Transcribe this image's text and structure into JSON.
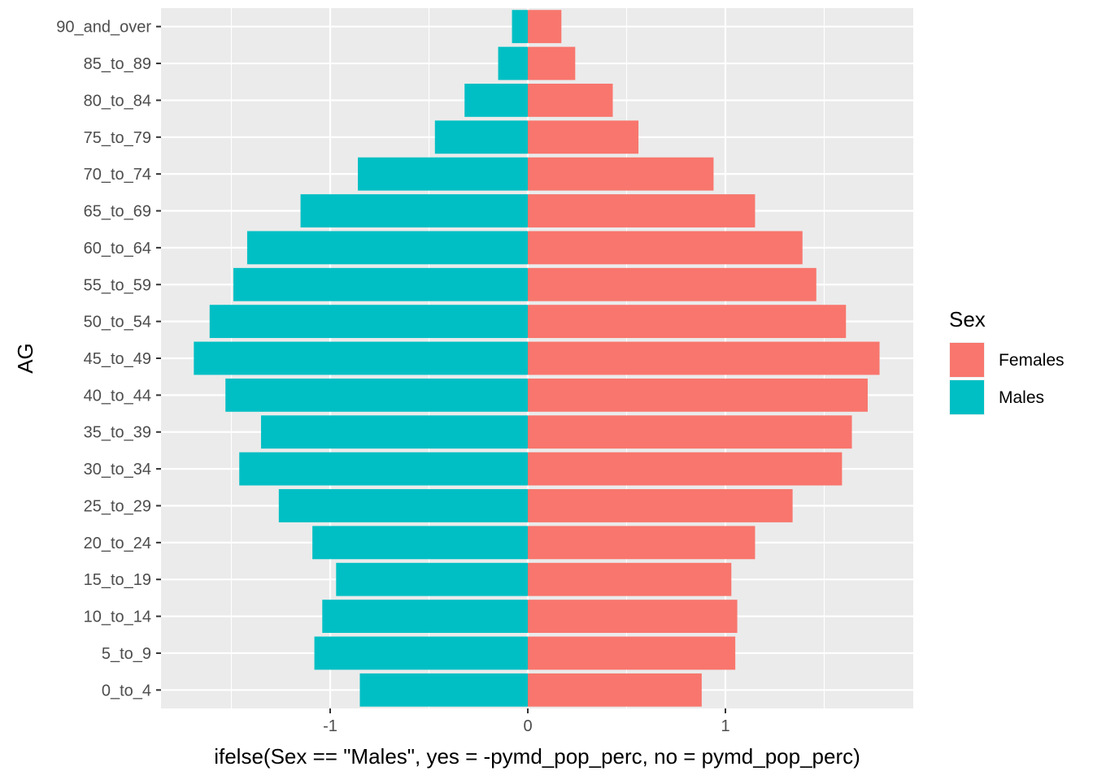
{
  "chart_data": {
    "type": "bar",
    "orientation": "horizontal",
    "xlabel": "ifelse(Sex == \"Males\", yes = -pymd_pop_perc, no = pymd_pop_perc)",
    "ylabel": "AG",
    "xlim": [
      -1.85,
      1.9
    ],
    "xticks": [
      {
        "value": -1,
        "label": "-1"
      },
      {
        "value": 0,
        "label": "0"
      },
      {
        "value": 1,
        "label": "1"
      }
    ],
    "categories": [
      "0_to_4",
      "5_to_9",
      "10_to_14",
      "15_to_19",
      "20_to_24",
      "25_to_29",
      "30_to_34",
      "35_to_39",
      "40_to_44",
      "45_to_49",
      "50_to_54",
      "55_to_59",
      "60_to_64",
      "65_to_69",
      "70_to_74",
      "75_to_79",
      "80_to_84",
      "85_to_89",
      "90_and_over"
    ],
    "legend": {
      "title": "Sex",
      "placement": "right",
      "entries": [
        {
          "name": "Females",
          "color": "#F8766D"
        },
        {
          "name": "Males",
          "color": "#00BFC4"
        }
      ]
    },
    "series": [
      {
        "name": "Females",
        "color": "#F8766D",
        "values": [
          0.88,
          1.05,
          1.06,
          1.03,
          1.15,
          1.34,
          1.59,
          1.64,
          1.72,
          1.78,
          1.61,
          1.46,
          1.39,
          1.15,
          0.94,
          0.56,
          0.43,
          0.24,
          0.17
        ]
      },
      {
        "name": "Males",
        "color": "#00BFC4",
        "values": [
          -0.85,
          -1.08,
          -1.04,
          -0.97,
          -1.09,
          -1.26,
          -1.46,
          -1.35,
          -1.53,
          -1.69,
          -1.61,
          -1.49,
          -1.42,
          -1.15,
          -0.86,
          -0.47,
          -0.32,
          -0.15,
          -0.08
        ]
      }
    ],
    "grid": true,
    "panel_background": "#EBEBEB",
    "grid_color": "#FFFFFF"
  }
}
